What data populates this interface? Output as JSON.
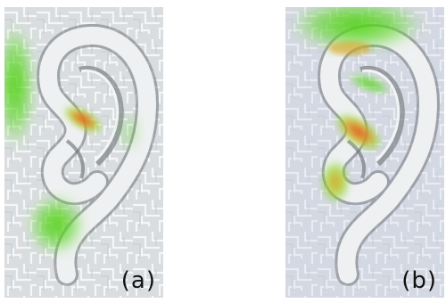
{
  "panels": [
    {
      "label": "(a)"
    },
    {
      "label": "(b)"
    }
  ],
  "colors": {
    "background": "#d9dde0",
    "circuit": "#f2f4f5",
    "ear": "#e6e9ea",
    "ear_shadow": "#6f757a",
    "heat_low": "#4ed117",
    "heat_mid": "#c9d21a",
    "heat_high": "#e2571e"
  }
}
